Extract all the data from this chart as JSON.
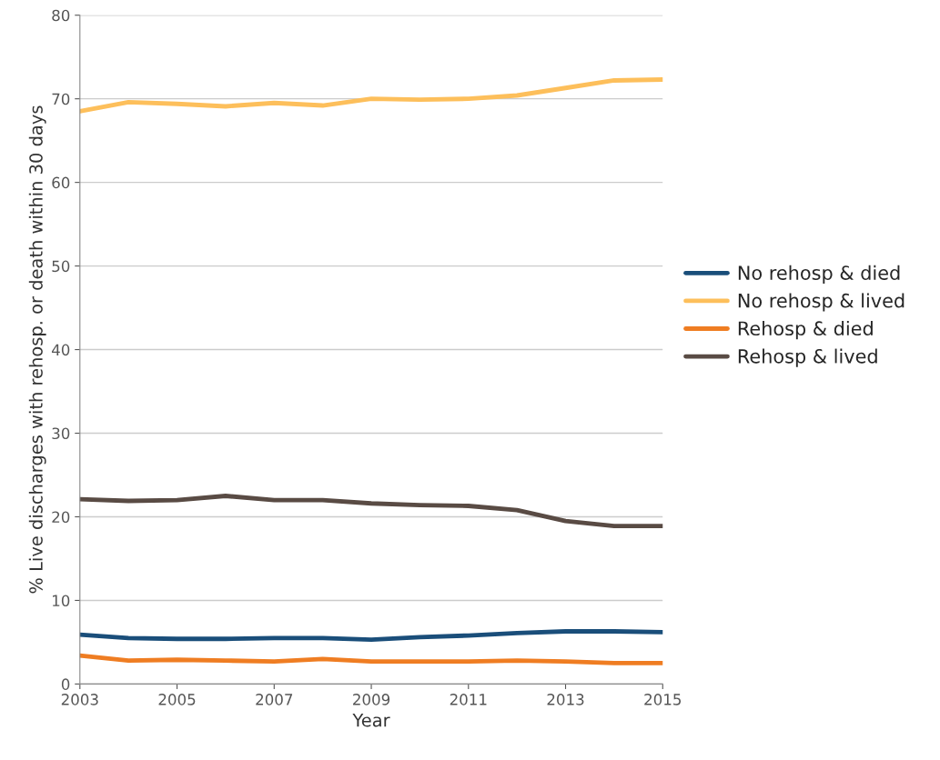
{
  "chart_data": {
    "type": "line",
    "xlabel": "Year",
    "ylabel": "% Live discharges with rehosp. or death within 30 days",
    "x": [
      2003,
      2004,
      2005,
      2006,
      2007,
      2008,
      2009,
      2010,
      2011,
      2012,
      2013,
      2014,
      2015
    ],
    "series": [
      {
        "name": "No rehosp & died",
        "color": "#1a4e7a",
        "values": [
          5.9,
          5.5,
          5.4,
          5.4,
          5.5,
          5.5,
          5.3,
          5.6,
          5.8,
          6.1,
          6.3,
          6.3,
          6.2
        ]
      },
      {
        "name": "No rehosp & lived",
        "color": "#fdbf5b",
        "values": [
          68.5,
          69.6,
          69.4,
          69.1,
          69.5,
          69.2,
          70.0,
          69.9,
          70.0,
          70.4,
          71.3,
          72.2,
          72.3
        ]
      },
      {
        "name": "Rehosp & died",
        "color": "#ef7d22",
        "values": [
          3.4,
          2.8,
          2.9,
          2.8,
          2.7,
          3.0,
          2.7,
          2.7,
          2.7,
          2.8,
          2.7,
          2.5,
          2.5
        ]
      },
      {
        "name": "Rehosp & lived",
        "color": "#594b44",
        "values": [
          22.1,
          21.9,
          22.0,
          22.5,
          22.0,
          22.0,
          21.6,
          21.4,
          21.3,
          20.8,
          19.5,
          18.9,
          18.9
        ]
      }
    ],
    "xlim": [
      2003,
      2015
    ],
    "xticks": [
      2003,
      2005,
      2007,
      2009,
      2011,
      2013,
      2015
    ],
    "ylim": [
      0,
      80
    ],
    "yticks": [
      0,
      10,
      20,
      30,
      40,
      50,
      60,
      70,
      80
    ],
    "grid": "y",
    "legend": "right",
    "marker": "none",
    "line_style": "solid"
  }
}
